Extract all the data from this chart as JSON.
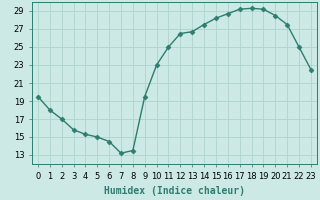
{
  "x": [
    0,
    1,
    2,
    3,
    4,
    5,
    6,
    7,
    8,
    9,
    10,
    11,
    12,
    13,
    14,
    15,
    16,
    17,
    18,
    19,
    20,
    21,
    22,
    23
  ],
  "y": [
    19.5,
    18.0,
    17.0,
    15.8,
    15.3,
    15.0,
    14.5,
    13.2,
    13.5,
    19.5,
    23.0,
    25.0,
    26.5,
    26.7,
    27.5,
    28.2,
    28.7,
    29.2,
    29.3,
    29.2,
    28.5,
    27.5,
    25.0,
    22.5
  ],
  "line_color": "#2e7d6e",
  "marker": "D",
  "marker_size": 2.5,
  "bg_color": "#cce9e5",
  "grid_color": "#aed4ce",
  "xlabel": "Humidex (Indice chaleur)",
  "xlabel_fontsize": 7,
  "tick_fontsize": 6,
  "ylim": [
    12,
    30
  ],
  "yticks": [
    13,
    15,
    17,
    19,
    21,
    23,
    25,
    27,
    29
  ],
  "xlim": [
    -0.5,
    23.5
  ],
  "xticks": [
    0,
    1,
    2,
    3,
    4,
    5,
    6,
    7,
    8,
    9,
    10,
    11,
    12,
    13,
    14,
    15,
    16,
    17,
    18,
    19,
    20,
    21,
    22,
    23
  ],
  "line_width": 1.0
}
